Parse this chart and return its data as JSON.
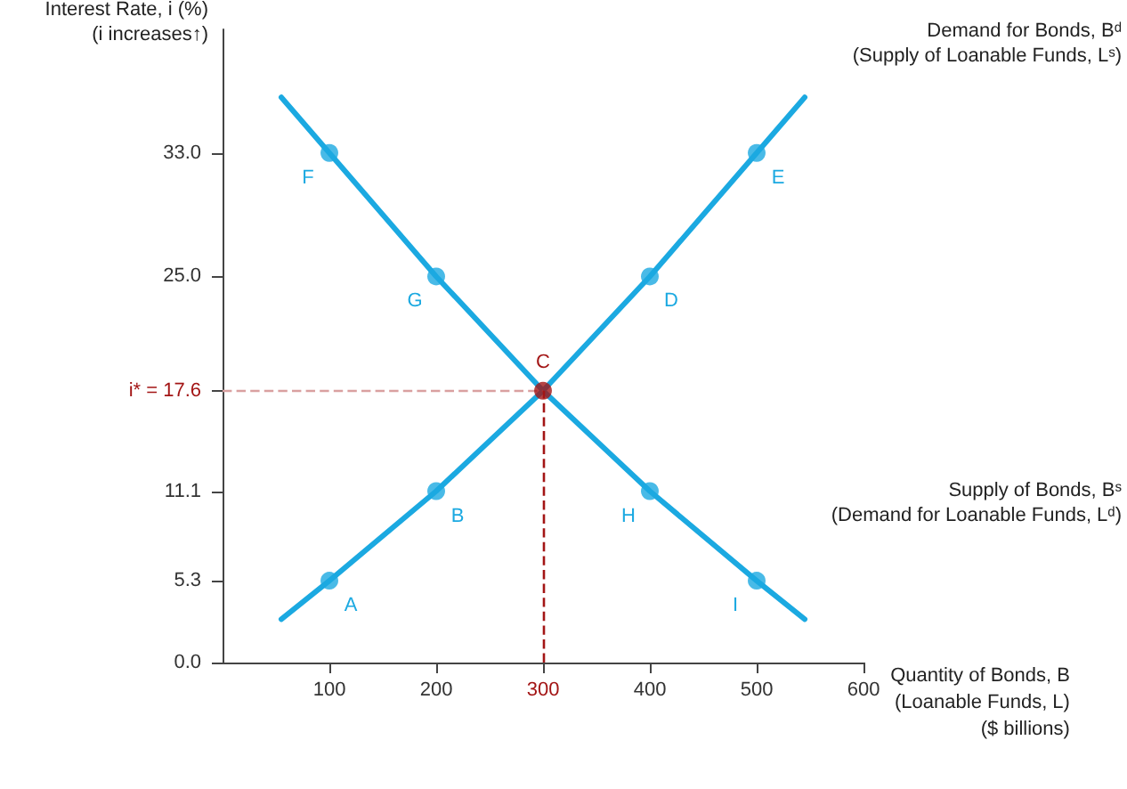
{
  "chart_data": {
    "type": "line",
    "xlabel": "Quantity of Bonds, B\n(Loanable Funds, L)\n($ billions)",
    "ylabel": "Interest Rate, i (%)\n(i increases↑)",
    "xlim": [
      0,
      600
    ],
    "xticks": [
      100,
      200,
      300,
      400,
      500,
      600
    ],
    "ylim": [
      0,
      41
    ],
    "yticks": [
      {
        "value": 0,
        "label": "0.0"
      },
      5.3,
      11.1,
      {
        "value": 17.6,
        "label": "i* = 17.6"
      },
      {
        "value": 25,
        "label": "25.0"
      },
      {
        "value": 33,
        "label": "33.0"
      }
    ],
    "grid": false,
    "legend": false,
    "series": [
      {
        "name": "Demand for Bonds, Bᵈ\n(Supply of Loanable Funds, Lˢ)",
        "color": "#1ba9e1",
        "marker": "none",
        "x": [
          55,
          100,
          200,
          300,
          400,
          500,
          545
        ],
        "values": [
          2.8,
          5.3,
          11.1,
          17.6,
          25,
          33,
          36.6
        ]
      },
      {
        "name": "Supply of Bonds, Bˢ\n(Demand for Loanable Funds, Lᵈ)",
        "color": "#1ba9e1",
        "marker": "none",
        "x": [
          55,
          100,
          200,
          300,
          400,
          500,
          545
        ],
        "values": [
          36.6,
          33,
          25,
          17.6,
          11.1,
          5.3,
          2.8
        ]
      },
      {
        "type": "scatter",
        "color": "#1ba9e1",
        "marker": "circle",
        "x": [
          100,
          200,
          400,
          500,
          100,
          200,
          400,
          500
        ],
        "values": [
          5.3,
          11.1,
          25,
          33,
          33,
          25,
          11.1,
          5.3
        ]
      },
      {
        "type": "scatter",
        "color": "#a31515",
        "marker": "circle",
        "x": [
          300
        ],
        "values": [
          17.6
        ]
      }
    ],
    "ref_lines": [
      {
        "axis": "y",
        "value": 17.6,
        "color": "#d9a0a0",
        "line_style": "dashed"
      },
      {
        "axis": "x",
        "value": 300,
        "color": "#a31515",
        "line_style": "dashed"
      }
    ],
    "annotations": [
      {
        "text": "A",
        "x": 100,
        "y": 5.3
      },
      {
        "text": "B",
        "x": 200,
        "y": 11.1
      },
      {
        "text": "C",
        "x": 300,
        "y": 17.6
      },
      {
        "text": "D",
        "x": 400,
        "y": 25
      },
      {
        "text": "E",
        "x": 500,
        "y": 33
      },
      {
        "text": "F",
        "x": 100,
        "y": 33
      },
      {
        "text": "G",
        "x": 200,
        "y": 25
      },
      {
        "text": "H",
        "x": 400,
        "y": 11.1
      },
      {
        "text": "I",
        "x": 500,
        "y": 5.3
      }
    ]
  }
}
